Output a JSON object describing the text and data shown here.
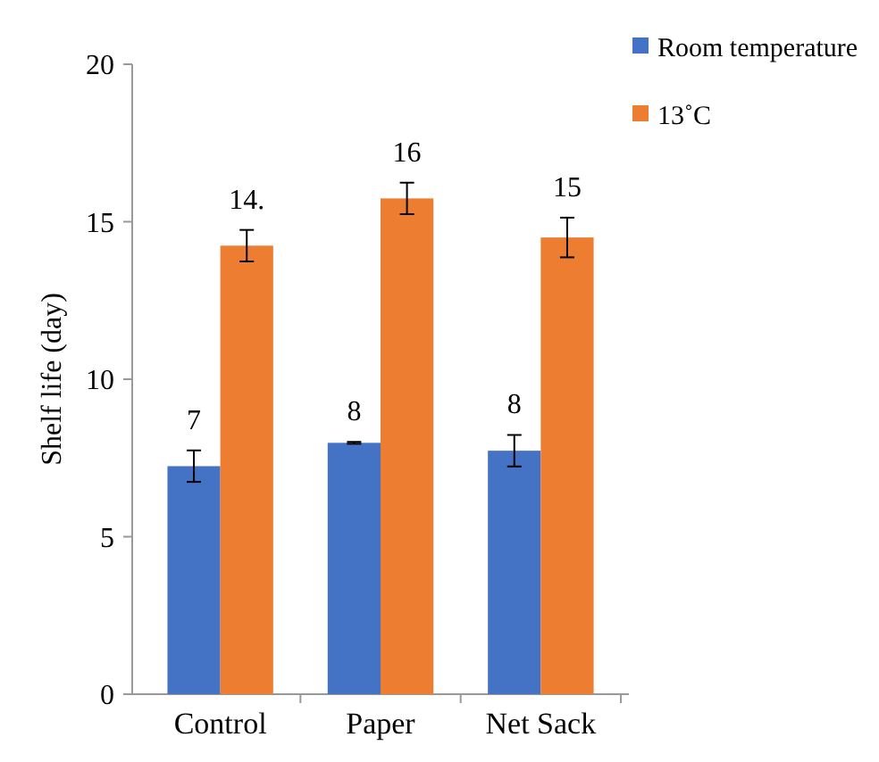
{
  "chart_data": {
    "type": "bar",
    "ylabel": "Shelf life (day)",
    "categories": [
      "Control",
      "Paper",
      "Net Sack"
    ],
    "series": [
      {
        "name": "Room temperature",
        "color": "#4472c4",
        "values": [
          7.24,
          7.98,
          7.73
        ],
        "errors": [
          0.5,
          0.03,
          0.5
        ],
        "value_labels": [
          "7",
          "8",
          "8"
        ]
      },
      {
        "name": "13˚C",
        "color": "#ed7d31",
        "values": [
          14.24,
          15.74,
          14.5
        ],
        "errors": [
          0.5,
          0.5,
          0.63
        ],
        "value_labels": [
          "14.",
          "16",
          "15"
        ]
      }
    ],
    "ylim": [
      0,
      20
    ],
    "yticks": [
      0,
      5,
      10,
      15,
      20
    ],
    "grid": false,
    "legend": "top right"
  }
}
